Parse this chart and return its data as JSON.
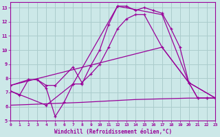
{
  "xlabel": "Windchill (Refroidissement éolien,°C)",
  "background_color": "#cce8e8",
  "grid_color": "#aacccc",
  "line_color": "#990099",
  "xlim": [
    0,
    23
  ],
  "ylim": [
    5,
    13.4
  ],
  "xticks": [
    0,
    1,
    2,
    3,
    4,
    5,
    6,
    7,
    8,
    9,
    10,
    11,
    12,
    13,
    14,
    15,
    16,
    17,
    18,
    19,
    20,
    21,
    22,
    23
  ],
  "yticks": [
    5,
    6,
    7,
    8,
    9,
    10,
    11,
    12,
    13
  ],
  "series1_x": [
    0,
    1,
    2,
    3,
    4,
    5,
    6,
    7,
    8,
    9,
    10,
    11,
    12,
    13,
    14,
    15,
    16,
    17,
    18,
    19,
    20,
    21,
    22,
    23
  ],
  "series1_y": [
    7.1,
    6.8,
    7.9,
    7.9,
    7.3,
    5.3,
    6.3,
    7.6,
    7.6,
    8.9,
    10.0,
    11.8,
    13.1,
    13.1,
    12.8,
    13.0,
    12.8,
    12.6,
    11.5,
    10.2,
    7.7,
    6.6,
    6.6,
    6.6
  ],
  "series2_x": [
    0,
    2,
    3,
    4,
    5,
    7,
    8,
    9,
    10,
    11,
    12,
    13,
    14,
    15,
    17,
    20,
    21,
    22,
    23
  ],
  "series2_y": [
    7.5,
    7.9,
    7.9,
    7.5,
    7.5,
    8.8,
    7.7,
    8.3,
    9.0,
    10.2,
    11.5,
    12.2,
    12.5,
    12.5,
    10.2,
    7.7,
    6.6,
    6.6,
    6.6
  ],
  "series3_x": [
    0,
    4,
    7,
    12,
    17,
    20,
    23
  ],
  "series3_y": [
    7.1,
    6.1,
    7.6,
    13.1,
    12.5,
    7.7,
    6.6
  ],
  "series4_x": [
    0,
    8,
    14,
    20,
    23
  ],
  "series4_y": [
    6.1,
    6.3,
    6.5,
    6.6,
    6.6
  ],
  "series5_x": [
    0,
    17,
    20,
    23
  ],
  "series5_y": [
    7.5,
    10.2,
    7.7,
    6.6
  ]
}
